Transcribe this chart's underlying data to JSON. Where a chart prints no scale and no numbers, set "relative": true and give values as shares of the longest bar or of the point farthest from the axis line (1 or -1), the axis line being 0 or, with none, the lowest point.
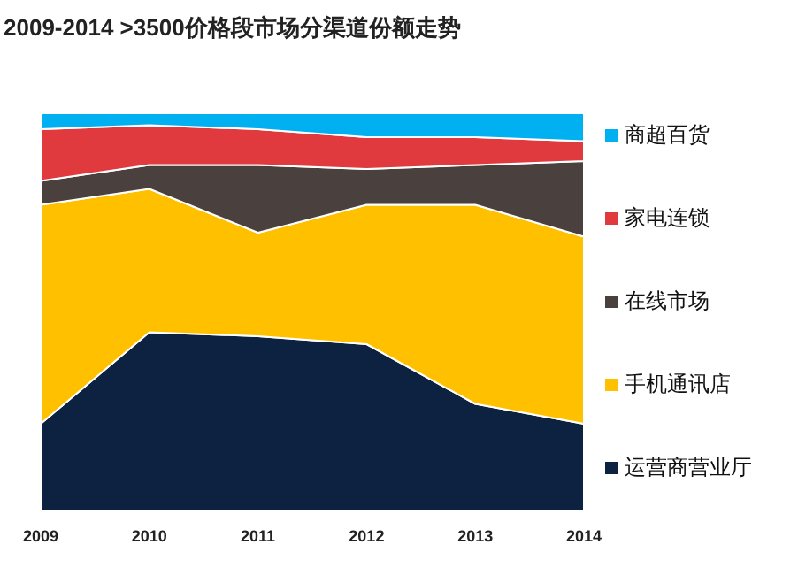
{
  "chart_data": {
    "type": "area",
    "title": "2009-2014 >3500价格段市场分渠道份额走势",
    "categories": [
      "2009",
      "2010",
      "2011",
      "2012",
      "2013",
      "2014"
    ],
    "stacked": true,
    "relative": true,
    "legend": "right",
    "series": [
      {
        "name": "运营商营业厅",
        "color": "#0d2240",
        "values": [
          0.22,
          0.45,
          0.44,
          0.42,
          0.27,
          0.22
        ]
      },
      {
        "name": "手机通讯店",
        "color": "#ffc000",
        "values": [
          0.55,
          0.36,
          0.26,
          0.35,
          0.5,
          0.47
        ]
      },
      {
        "name": "在线市场",
        "color": "#4a403e",
        "values": [
          0.06,
          0.06,
          0.17,
          0.09,
          0.1,
          0.19
        ]
      },
      {
        "name": "家电连锁",
        "color": "#e03a3e",
        "values": [
          0.13,
          0.1,
          0.09,
          0.08,
          0.07,
          0.05
        ]
      },
      {
        "name": "商超百货",
        "color": "#00b0f0",
        "values": [
          0.04,
          0.03,
          0.04,
          0.06,
          0.06,
          0.07
        ]
      }
    ]
  }
}
